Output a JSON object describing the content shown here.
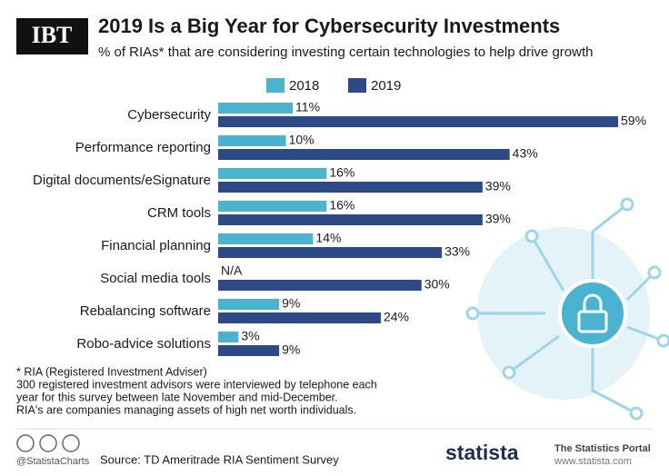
{
  "chart_data": {
    "type": "bar",
    "orientation": "horizontal",
    "title": "2019 Is a Big Year for Cybersecurity Investments",
    "subtitle": "% of RIAs* that are considering investing certain technologies to help drive growth",
    "categories": [
      "Cybersecurity",
      "Performance reporting",
      "Digital documents/eSignature",
      "CRM tools",
      "Financial planning",
      "Social media tools",
      "Rebalancing software",
      "Robo-advice solutions"
    ],
    "series": [
      {
        "name": "2018",
        "color": "#4ab3cf",
        "values": [
          11,
          10,
          16,
          16,
          14,
          null,
          9,
          3
        ],
        "value_labels": [
          "11%",
          "10%",
          "16%",
          "16%",
          "14%",
          "N/A",
          "9%",
          "3%"
        ]
      },
      {
        "name": "2019",
        "color": "#2d4a86",
        "values": [
          59,
          43,
          39,
          39,
          33,
          30,
          24,
          9
        ],
        "value_labels": [
          "59%",
          "43%",
          "39%",
          "39%",
          "33%",
          "30%",
          "24%",
          "9%"
        ]
      }
    ],
    "legend": "top"
  },
  "branding": {
    "logo": "IBT",
    "statista": "statista",
    "portal": "The Statistics Portal",
    "url": "www.statista.com",
    "handle": "@StatistaCharts"
  },
  "notes": [
    "* RIA (Registered Investment Adviser)",
    "300 registered investment advisors were interviewed by telephone each",
    "year for this survey between late November and mid-December.",
    "RIA's are companies managing assets of high net worth individuals."
  ],
  "source": "Source: TD Ameritrade RIA Sentiment Survey"
}
